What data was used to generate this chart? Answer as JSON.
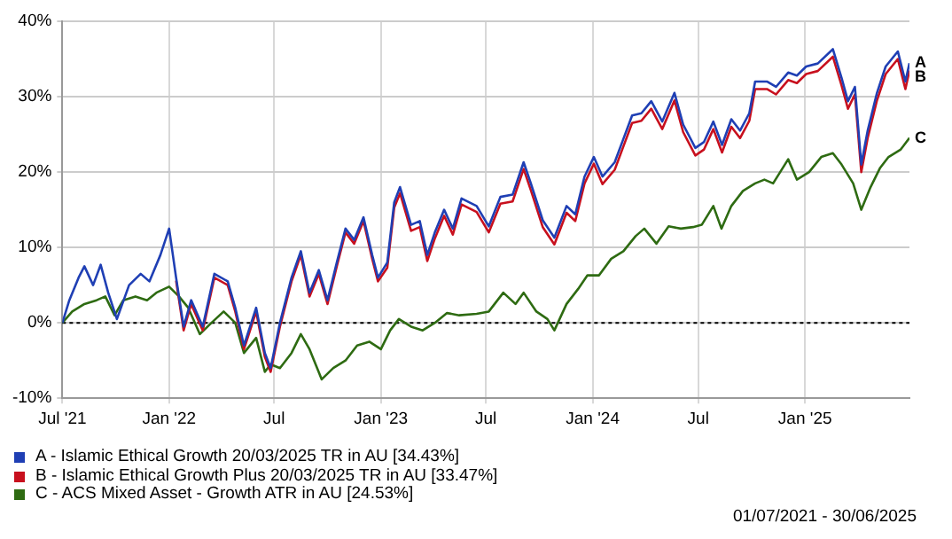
{
  "chart_data": {
    "type": "line",
    "x": [
      "2021-07-01",
      "2021-07-13",
      "2021-07-29",
      "2021-08-08",
      "2021-08-23",
      "2021-09-05",
      "2021-09-18",
      "2021-10-03",
      "2021-10-24",
      "2021-11-13",
      "2021-11-28",
      "2021-12-17",
      "2022-01-01",
      "2022-01-13",
      "2022-01-26",
      "2022-02-08",
      "2022-02-28",
      "2022-03-20",
      "2022-04-12",
      "2022-04-25",
      "2022-05-10",
      "2022-05-31",
      "2022-06-15",
      "2022-06-25",
      "2022-07-11",
      "2022-07-31",
      "2022-08-16",
      "2022-08-31",
      "2022-09-16",
      "2022-10-01",
      "2022-10-17",
      "2022-11-01",
      "2022-11-16",
      "2022-12-02",
      "2022-12-17",
      "2022-12-27",
      "2023-01-12",
      "2023-01-24",
      "2023-02-03",
      "2023-02-22",
      "2023-03-09",
      "2023-03-22",
      "2023-04-04",
      "2023-04-20",
      "2023-05-05",
      "2023-05-20",
      "2023-06-15",
      "2023-07-06",
      "2023-07-26",
      "2023-08-16",
      "2023-09-04",
      "2023-09-16",
      "2023-10-07",
      "2023-10-27",
      "2023-11-17",
      "2023-12-02",
      "2023-12-18",
      "2024-01-03",
      "2024-01-18",
      "2024-02-08",
      "2024-02-23",
      "2024-03-09",
      "2024-03-25",
      "2024-04-11",
      "2024-04-30",
      "2024-05-21",
      "2024-06-05",
      "2024-06-26",
      "2024-07-11",
      "2024-07-27",
      "2024-08-11",
      "2024-08-27",
      "2024-09-11",
      "2024-09-27",
      "2024-10-07",
      "2024-10-28",
      "2024-11-12",
      "2024-12-03",
      "2024-12-18",
      "2025-01-03",
      "2025-01-23",
      "2025-02-18",
      "2025-03-05",
      "2025-03-16",
      "2025-03-28",
      "2025-04-08",
      "2025-04-19",
      "2025-05-05",
      "2025-05-20",
      "2025-06-10",
      "2025-06-23",
      "2025-06-30"
    ],
    "series": [
      {
        "name": "A - Islamic Ethical Growth 20/03/2025 TR in AU [34.43%]",
        "color": "#1f3fb4",
        "values": [
          0,
          3,
          6,
          7.5,
          5,
          7.7,
          4,
          0.5,
          5,
          6.5,
          5.5,
          9,
          12.5,
          6,
          -0.5,
          3,
          -0.5,
          6.5,
          5.5,
          2,
          -3,
          2,
          -4,
          -6,
          0,
          6,
          9.5,
          4,
          7,
          3,
          8,
          12.5,
          11,
          14,
          9,
          6,
          8,
          16,
          18,
          13,
          13.5,
          9,
          12,
          15,
          12.5,
          16.5,
          15.5,
          12.8,
          16.7,
          17,
          21.3,
          18.6,
          13.6,
          11.3,
          15.5,
          14.4,
          19.4,
          22,
          19.4,
          21.3,
          24.4,
          27.5,
          27.8,
          29.4,
          26.7,
          30.5,
          26.3,
          23.2,
          24,
          26.7,
          23.6,
          27,
          25.5,
          27.8,
          32,
          32,
          31.3,
          33.2,
          32.8,
          34,
          34.4,
          36.3,
          32.5,
          29.4,
          31.3,
          21,
          25.5,
          30.5,
          34,
          36,
          32,
          34.43
        ]
      },
      {
        "name": "B - Islamic Ethical Growth Plus 20/03/2025 TR in AU [33.47%]",
        "color": "#c8101e",
        "values": [
          null,
          null,
          null,
          null,
          null,
          null,
          null,
          null,
          null,
          null,
          null,
          null,
          null,
          5.6,
          -1,
          2.5,
          -1,
          6,
          5,
          1.5,
          -3.5,
          1.5,
          -4.5,
          -6.5,
          -0.5,
          5.5,
          9,
          3.5,
          6.5,
          2.5,
          7.5,
          12,
          10.5,
          13.5,
          8.5,
          5.5,
          7.3,
          15.3,
          17.2,
          12.2,
          12.7,
          8.2,
          11.2,
          14.2,
          11.7,
          15.7,
          14.7,
          12,
          15.8,
          16.1,
          20.4,
          17.7,
          12.7,
          10.4,
          14.6,
          13.5,
          18.5,
          21.1,
          18.4,
          20.3,
          23.4,
          26.5,
          26.8,
          28.4,
          25.7,
          29.5,
          25.3,
          22.2,
          23,
          25.7,
          22.6,
          26,
          24.5,
          26.8,
          31,
          31,
          30.3,
          32.2,
          31.8,
          33,
          33.4,
          35.3,
          31.5,
          28.4,
          30.3,
          20,
          24.5,
          29.5,
          33,
          35,
          31,
          33.47
        ]
      },
      {
        "name": "C - ACS Mixed Asset - Growth ATR in AU [24.53%]",
        "color": "#2e6b12",
        "x": [
          "2021-07-01",
          "2021-07-18",
          "2021-08-08",
          "2021-08-29",
          "2021-09-13",
          "2021-09-29",
          "2021-10-14",
          "2021-11-04",
          "2021-11-24",
          "2021-12-10",
          "2022-01-01",
          "2022-01-18",
          "2022-02-03",
          "2022-02-23",
          "2022-03-15",
          "2022-04-05",
          "2022-04-25",
          "2022-05-10",
          "2022-05-31",
          "2022-06-15",
          "2022-06-25",
          "2022-07-11",
          "2022-07-31",
          "2022-08-16",
          "2022-08-31",
          "2022-09-21",
          "2022-10-11",
          "2022-11-01",
          "2022-11-21",
          "2022-12-12",
          "2023-01-01",
          "2023-01-17",
          "2023-02-01",
          "2023-02-22",
          "2023-03-14",
          "2023-04-04",
          "2023-04-25",
          "2023-05-16",
          "2023-06-15",
          "2023-07-06",
          "2023-07-31",
          "2023-08-21",
          "2023-09-04",
          "2023-09-26",
          "2023-10-15",
          "2023-10-27",
          "2023-11-17",
          "2023-12-07",
          "2023-12-23",
          "2024-01-12",
          "2024-02-02",
          "2024-02-23",
          "2024-03-15",
          "2024-03-30",
          "2024-04-20",
          "2024-05-11",
          "2024-06-01",
          "2024-06-22",
          "2024-07-07",
          "2024-07-27",
          "2024-08-10",
          "2024-08-27",
          "2024-09-16",
          "2024-10-07",
          "2024-10-23",
          "2024-11-07",
          "2024-12-03",
          "2024-12-18",
          "2025-01-08",
          "2025-01-29",
          "2025-02-18",
          "2025-03-05",
          "2025-03-25",
          "2025-04-08",
          "2025-04-24",
          "2025-05-10",
          "2025-05-25",
          "2025-06-15",
          "2025-06-30"
        ],
        "values": [
          0,
          1.5,
          2.5,
          3,
          3.5,
          1,
          3,
          3.5,
          3,
          4,
          4.8,
          3.5,
          2,
          -1.5,
          0,
          1.5,
          0,
          -4,
          -2,
          -6.5,
          -5.5,
          -6,
          -4,
          -1.5,
          -3.5,
          -7.5,
          -6,
          -5,
          -3,
          -2.5,
          -3.5,
          -1,
          0.5,
          -0.5,
          -1,
          0,
          1.3,
          1,
          1.2,
          1.5,
          4,
          2.5,
          4,
          1.5,
          0.5,
          -1,
          2.5,
          4.5,
          6.3,
          6.3,
          8.5,
          9.5,
          11.5,
          12.5,
          10.5,
          12.8,
          12.5,
          12.7,
          13,
          15.5,
          12.5,
          15.5,
          17.5,
          18.5,
          19,
          18.5,
          21.7,
          19,
          20,
          22,
          22.5,
          21,
          18.5,
          15,
          18,
          20.5,
          22,
          23,
          24.53
        ]
      }
    ],
    "xlim": [
      "2021-07-01",
      "2025-06-30"
    ],
    "xticks": [
      {
        "value": "2021-07-01",
        "label": "Jul '21"
      },
      {
        "value": "2022-01-01",
        "label": "Jan '22"
      },
      {
        "value": "2022-07-01",
        "label": "Jul"
      },
      {
        "value": "2023-01-01",
        "label": "Jan '23"
      },
      {
        "value": "2023-07-01",
        "label": "Jul"
      },
      {
        "value": "2024-01-01",
        "label": "Jan '24"
      },
      {
        "value": "2024-07-01",
        "label": "Jul"
      },
      {
        "value": "2025-01-01",
        "label": "Jan '25"
      }
    ],
    "ylim": [
      -10,
      40
    ],
    "yticks": [
      {
        "value": -10,
        "label": "-10%"
      },
      {
        "value": 0,
        "label": "0%"
      },
      {
        "value": 10,
        "label": "10%"
      },
      {
        "value": 20,
        "label": "20%"
      },
      {
        "value": 30,
        "label": "30%"
      },
      {
        "value": 40,
        "label": "40%"
      }
    ],
    "grid": true,
    "legend": "bottom left",
    "marker": "none",
    "line_style": "solid",
    "ref_lines": [
      {
        "axis": "y",
        "value": 0,
        "color": "#000000",
        "line_style": "dotted"
      }
    ],
    "annotations": [
      {
        "text": "A",
        "x": "2025-06-30",
        "y": 34.43
      },
      {
        "text": "B",
        "x": "2025-06-30",
        "y": 33.47
      },
      {
        "text": "C",
        "x": "2025-06-30",
        "y": 24.53
      },
      "01/07/2021 - 30/06/2025"
    ]
  }
}
